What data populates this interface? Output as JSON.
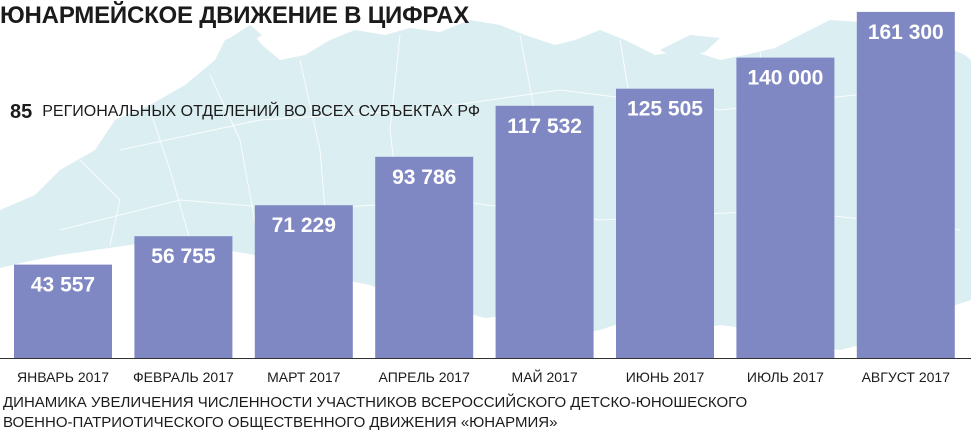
{
  "title": "ЮНАРМЕЙСКОЕ ДВИЖЕНИЕ В ЦИФРАХ",
  "regions": {
    "count": "85",
    "text": "РЕГИОНАЛЬНЫХ ОТДЕЛЕНИЙ ВО ВСЕХ СУБЪЕКТАХ РФ"
  },
  "caption": {
    "line1": "ДИНАМИКА УВЕЛИЧЕНИЯ ЧИСЛЕННОСТИ УЧАСТНИКОВ ВСЕРОССИЙСКОГО ДЕТСКО-ЮНОШЕСКОГО",
    "line2": "ВОЕННО-ПАТРИОТИЧЕСКОГО ОБЩЕСТВЕННОГО ДВИЖЕНИЯ «ЮНАРМИЯ»"
  },
  "colors": {
    "bar": "#8088c4",
    "value_label": "#ffffff",
    "map": "#dbeef1",
    "text": "#1b1b1b",
    "axis": "#333333"
  },
  "chart_data": {
    "type": "bar",
    "categories": [
      "ЯНВАРЬ 2017",
      "ФЕВРАЛЬ 2017",
      "МАРТ 2017",
      "АПРЕЛЬ 2017",
      "МАЙ 2017",
      "ИЮНЬ 2017",
      "ИЮЛЬ 2017",
      "АВГУСТ 2017"
    ],
    "values": [
      43557,
      56755,
      71229,
      93786,
      117532,
      125505,
      140000,
      161300
    ],
    "value_labels": [
      "43 557",
      "56 755",
      "71 229",
      "93 786",
      "117 532",
      "125 505",
      "140 000",
      "161 300"
    ],
    "title": "",
    "xlabel": "",
    "ylabel": "",
    "ylim": [
      0,
      165000
    ],
    "grid": false,
    "legend": "none"
  }
}
